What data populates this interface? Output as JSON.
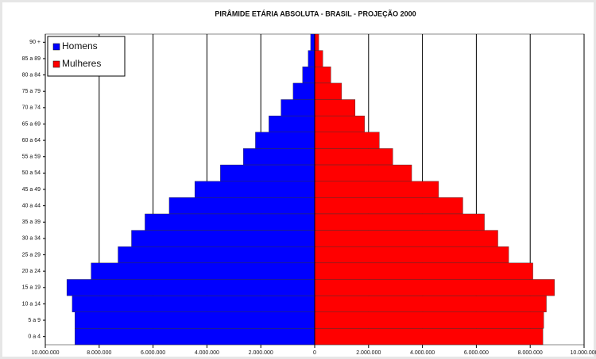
{
  "chart_data": {
    "type": "pyramid",
    "title": "PIRÂMIDE ETÁRIA ABSOLUTA - BRASIL - PROJEÇÃO 2000",
    "categories": [
      "90 +",
      "85 a 89",
      "80 a 84",
      "75 a 79",
      "70 a 74",
      "65 a 69",
      "60 a 64",
      "55 a 59",
      "50 a 54",
      "45 a 49",
      "40 a 44",
      "35 a 39",
      "30 a 34",
      "25 a 29",
      "20 a 24",
      "15 a 19",
      "10 a 14",
      "5 a 9",
      "0 a 4"
    ],
    "series": [
      {
        "name": "Homens",
        "color": "#0000ff",
        "values": [
          -150000,
          -240000,
          -450000,
          -800000,
          -1250000,
          -1700000,
          -2200000,
          -2650000,
          -3500000,
          -4450000,
          -5400000,
          -6300000,
          -6800000,
          -7300000,
          -8300000,
          -9200000,
          -9000000,
          -8900000,
          -8900000
        ]
      },
      {
        "name": "Mulheres",
        "color": "#ff0000",
        "values": [
          150000,
          300000,
          600000,
          1000000,
          1500000,
          1850000,
          2400000,
          2900000,
          3600000,
          4600000,
          5500000,
          6300000,
          6800000,
          7200000,
          8100000,
          8900000,
          8600000,
          8500000,
          8470000
        ]
      }
    ],
    "xlim": [
      -10000000,
      10000000
    ],
    "xticks": [
      {
        "value": -10000000,
        "label": "10.000.000"
      },
      {
        "value": -8000000,
        "label": "8.000.000"
      },
      {
        "value": -6000000,
        "label": "6.000.000"
      },
      {
        "value": -4000000,
        "label": "4.000.000"
      },
      {
        "value": -2000000,
        "label": "2.000.000"
      },
      0,
      {
        "value": 2000000,
        "label": "2.000.000"
      },
      {
        "value": 4000000,
        "label": "4.000.000"
      },
      {
        "value": 6000000,
        "label": "6.000.000"
      },
      {
        "value": 8000000,
        "label": "8.000.000"
      },
      {
        "value": 10000000,
        "label": "10.000.000"
      }
    ],
    "grid": true,
    "legend": "top-left"
  }
}
